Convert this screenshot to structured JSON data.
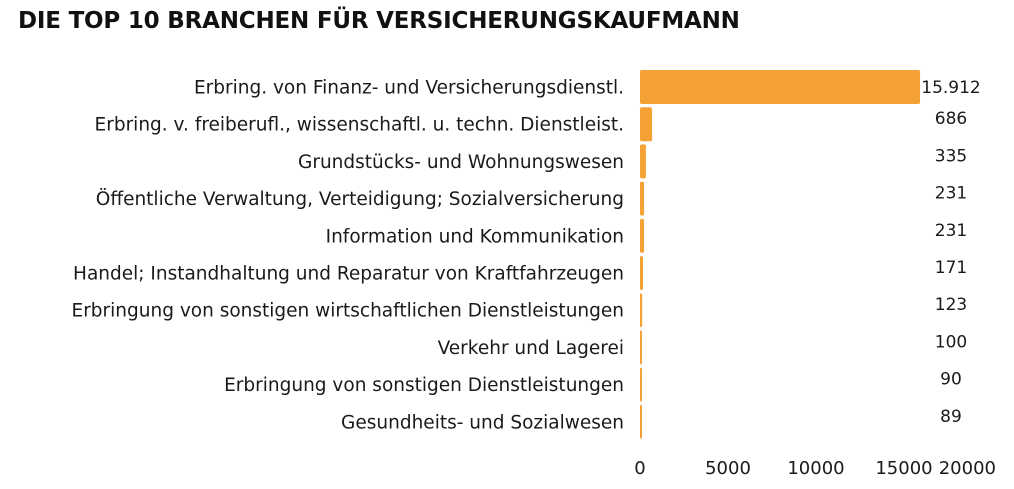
{
  "chart_data": {
    "type": "bar",
    "orientation": "horizontal",
    "title": "DIE TOP 10 BRANCHEN FÜR VERSICHERUNGSKAUFMANN",
    "categories": [
      "Erbring. von Finanz- und Versicherungsdienstl.",
      "Erbring. v. freiberufl., wissenschaftl. u. techn. Dienstleist.",
      "Grundstücks- und Wohnungswesen",
      "Öffentliche Verwaltung, Verteidigung; Sozialversicherung",
      "Information und Kommunikation",
      "Handel; Instandhaltung und Reparatur von Kraftfahrzeugen",
      "Erbringung von sonstigen wirtschaftlichen Dienstleistungen",
      "Verkehr und Lagerei",
      "Erbringung von sonstigen Dienstleistungen",
      "Gesundheits- und Sozialwesen"
    ],
    "values": [
      15912,
      686,
      335,
      231,
      231,
      171,
      123,
      100,
      90,
      89
    ],
    "value_labels": [
      "15.912",
      "686",
      "335",
      "231",
      "231",
      "171",
      "123",
      "100",
      "90",
      "89"
    ],
    "xlim": [
      0,
      20000
    ],
    "xticks": [
      0,
      5000,
      10000,
      15000,
      20000
    ],
    "xtick_labels": [
      "0",
      "5000",
      "10000",
      "15000",
      "20000"
    ],
    "bar_color": "#f4a233",
    "grid": false,
    "legend": "none"
  }
}
